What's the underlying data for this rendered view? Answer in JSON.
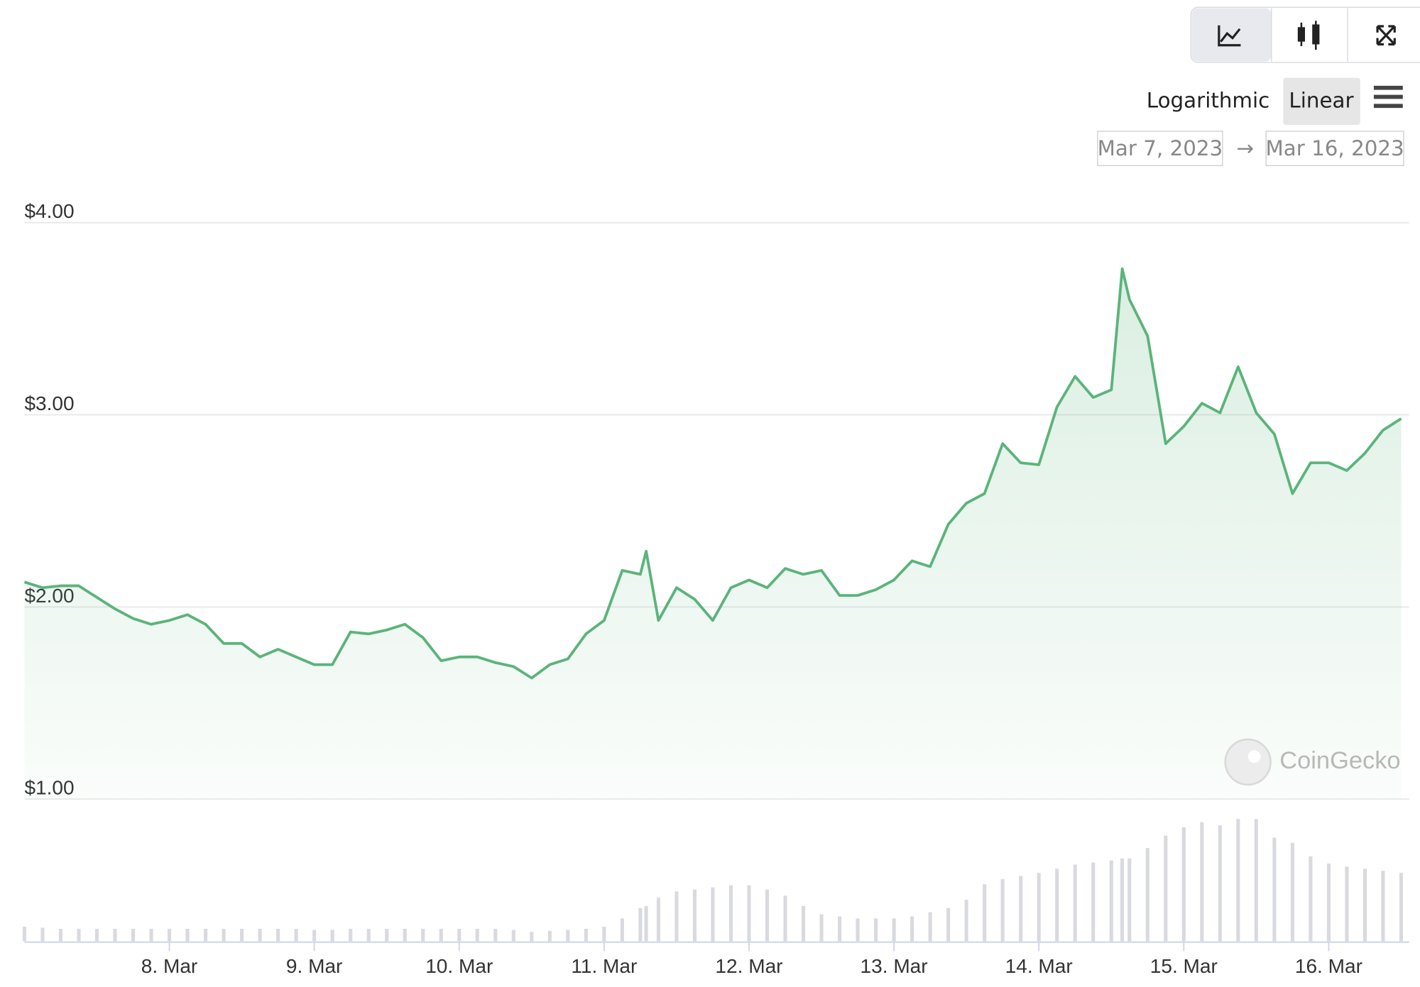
{
  "chart_data": {
    "type": "area",
    "controls": {
      "scale_options": [
        "Logarithmic",
        "Linear"
      ],
      "date_from": "Mar 7, 2023",
      "range_separator": "→",
      "date_to": "Mar 16, 2023"
    },
    "watermark": "CoinGecko",
    "log_scale": false,
    "grid": true,
    "color": "#5bb47a",
    "volume_color": "#d9dae0",
    "x": [
      7,
      7.125,
      7.25,
      7.375,
      7.5,
      7.625,
      7.75,
      7.875,
      8,
      8.125,
      8.25,
      8.375,
      8.5,
      8.625,
      8.75,
      8.875,
      9,
      9.125,
      9.25,
      9.375,
      9.5,
      9.625,
      9.75,
      9.875,
      10,
      10.125,
      10.25,
      10.375,
      10.5,
      10.625,
      10.75,
      10.875,
      11,
      11.125,
      11.25,
      11.29,
      11.375,
      11.5,
      11.625,
      11.75,
      11.875,
      12,
      12.125,
      12.25,
      12.375,
      12.5,
      12.625,
      12.75,
      12.875,
      13,
      13.125,
      13.25,
      13.375,
      13.5,
      13.625,
      13.75,
      13.875,
      14,
      14.125,
      14.25,
      14.375,
      14.5,
      14.575,
      14.625,
      14.75,
      14.875,
      15,
      15.125,
      15.25,
      15.375,
      15.5,
      15.625,
      15.75,
      15.875,
      16,
      16.125,
      16.25,
      16.375,
      16.5
    ],
    "values": [
      2.13,
      2.1,
      2.11,
      2.11,
      2.05,
      1.99,
      1.94,
      1.91,
      1.93,
      1.96,
      1.91,
      1.81,
      1.81,
      1.74,
      1.78,
      1.74,
      1.7,
      1.7,
      1.87,
      1.86,
      1.88,
      1.91,
      1.84,
      1.72,
      1.74,
      1.74,
      1.71,
      1.69,
      1.63,
      1.7,
      1.73,
      1.86,
      1.93,
      2.19,
      2.17,
      2.29,
      1.93,
      2.1,
      2.04,
      1.93,
      2.1,
      2.14,
      2.1,
      2.2,
      2.17,
      2.19,
      2.06,
      2.06,
      2.09,
      2.14,
      2.24,
      2.21,
      2.43,
      2.54,
      2.59,
      2.85,
      2.75,
      2.74,
      3.04,
      3.2,
      3.09,
      3.13,
      3.76,
      3.6,
      3.41,
      2.85,
      2.94,
      3.06,
      3.01,
      3.25,
      3.01,
      2.9,
      2.59,
      2.75,
      2.75,
      2.71,
      2.8,
      2.92,
      2.98
    ],
    "volume": [
      14,
      13,
      12,
      12,
      12,
      12,
      12,
      12,
      12,
      12,
      12,
      12,
      12,
      12,
      12,
      12,
      11,
      11,
      12,
      12,
      12,
      12,
      12,
      12,
      12,
      12,
      12,
      11,
      9,
      10,
      11,
      12,
      14,
      22,
      32,
      34,
      42,
      48,
      50,
      52,
      54,
      54,
      50,
      44,
      34,
      26,
      24,
      22,
      22,
      22,
      24,
      28,
      32,
      40,
      55,
      60,
      63,
      66,
      70,
      74,
      76,
      78,
      80,
      80,
      90,
      102,
      110,
      115,
      112,
      118,
      118,
      100,
      95,
      82,
      75,
      72,
      70,
      68,
      66
    ],
    "xlim": [
      7,
      16.53
    ],
    "xticks": [
      {
        "value": 8,
        "label": "8. Mar"
      },
      {
        "value": 9,
        "label": "9. Mar"
      },
      {
        "value": 10,
        "label": "10. Mar"
      },
      {
        "value": 11,
        "label": "11. Mar"
      },
      {
        "value": 12,
        "label": "12. Mar"
      },
      {
        "value": 13,
        "label": "13. Mar"
      },
      {
        "value": 14,
        "label": "14. Mar"
      },
      {
        "value": 15,
        "label": "15. Mar"
      },
      {
        "value": 16,
        "label": "16. Mar"
      }
    ],
    "ylim": [
      1,
      4
    ],
    "yticks": [
      {
        "value": 1,
        "label": "$1.00"
      },
      {
        "value": 2,
        "label": "$2.00"
      },
      {
        "value": 3,
        "label": "$3.00"
      },
      {
        "value": 4,
        "label": "$4.00"
      }
    ]
  }
}
